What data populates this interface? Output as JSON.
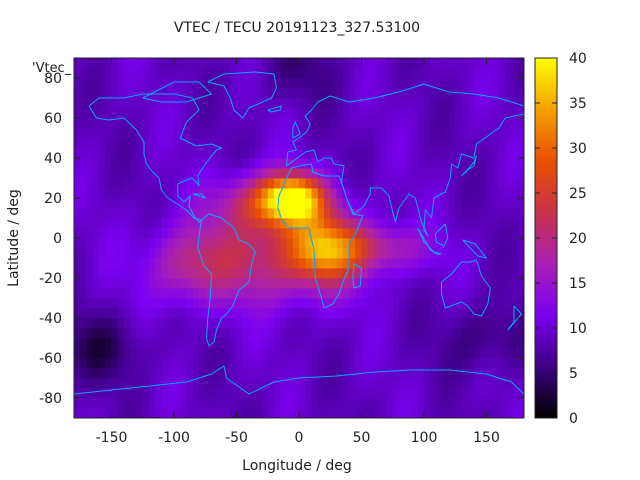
{
  "chart_data": {
    "type": "heatmap",
    "title": "VTEC / TECU 20191123_327.53100",
    "xlabel": "Longitude / deg",
    "ylabel": "Latitude / deg",
    "key_label": "'Vtec_",
    "xlim": [
      -180,
      180
    ],
    "ylim": [
      -90,
      90
    ],
    "x_ticks": [
      -150,
      -100,
      -50,
      0,
      50,
      100,
      150
    ],
    "y_ticks": [
      -80,
      -60,
      -40,
      -20,
      0,
      20,
      40,
      60,
      80
    ],
    "colorbar": {
      "min": 0,
      "max": 40,
      "ticks": [
        0,
        5,
        10,
        15,
        20,
        25,
        30,
        35,
        40
      ],
      "palette": [
        "#000000",
        "#3d0084",
        "#7b00f0",
        "#a820b4",
        "#c8324a",
        "#e85000",
        "#f5a000",
        "#ffff00"
      ]
    },
    "grid_step_deg": 5,
    "features": {
      "background_vtec": 9,
      "anomalies": [
        {
          "lon": -5,
          "lat": 20,
          "vtec": 31,
          "sigma_lon": 16,
          "sigma_lat": 8
        },
        {
          "lon": -20,
          "lat": 18,
          "vtec": 25,
          "sigma_lon": 28,
          "sigma_lat": 10
        },
        {
          "lon": 20,
          "lat": -5,
          "vtec": 26,
          "sigma_lon": 20,
          "sigma_lat": 12
        },
        {
          "lon": -30,
          "lat": -10,
          "vtec": 21,
          "sigma_lon": 50,
          "sigma_lat": 16
        },
        {
          "lon": 60,
          "lat": -5,
          "vtec": 18,
          "sigma_lon": 30,
          "sigma_lat": 8
        },
        {
          "lon": -90,
          "lat": -15,
          "vtec": 15,
          "sigma_lon": 20,
          "sigma_lat": 12
        }
      ],
      "polar_lows": [
        {
          "lon": -160,
          "lat": -55,
          "delta": -5
        },
        {
          "lon": 150,
          "lat": -50,
          "delta": -4
        },
        {
          "lon": 0,
          "lat": 85,
          "delta": -3
        }
      ]
    }
  }
}
